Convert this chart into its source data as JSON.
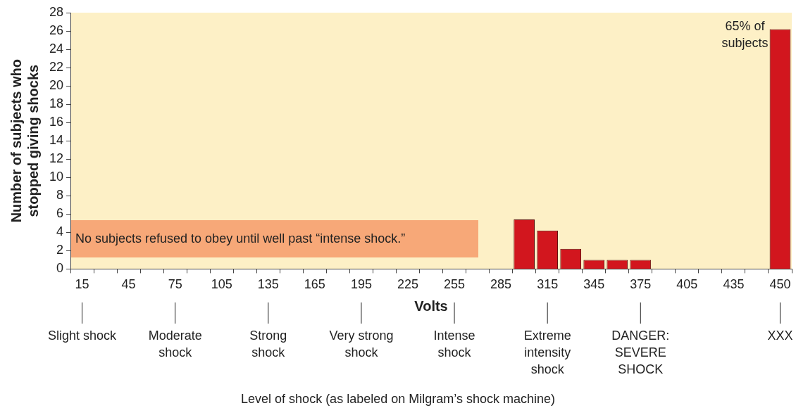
{
  "chart_data": {
    "type": "bar",
    "xlabel": "Volts",
    "ylabel": "Number of subjects who stopped giving shocks",
    "categories": [
      "15",
      null,
      "45",
      null,
      "75",
      null,
      "105",
      null,
      "135",
      null,
      "165",
      null,
      "195",
      null,
      "225",
      null,
      "255",
      null,
      "285",
      null,
      "315",
      null,
      "345",
      null,
      "375",
      null,
      "405",
      null,
      "435",
      null,
      "450"
    ],
    "values": [
      0,
      0,
      0,
      0,
      0,
      0,
      0,
      0,
      0,
      0,
      0,
      0,
      0,
      0,
      0,
      0,
      0,
      0,
      0,
      5.4,
      4.2,
      2.2,
      1,
      1,
      1,
      0,
      0,
      0,
      0,
      0,
      26.2
    ],
    "color": "#d2161e",
    "ylim": [
      0,
      28
    ],
    "yticks": [
      0,
      2,
      4,
      6,
      8,
      10,
      12,
      14,
      16,
      18,
      20,
      22,
      24,
      26,
      28
    ],
    "grid": false,
    "legend": false,
    "annotations": [
      "No subjects refused to obey until well past “intense shock.”",
      {
        "text": "65% of subjects",
        "x": "450",
        "y": 26.2
      },
      {
        "text": "Slight shock",
        "x": "15"
      },
      {
        "text": "Moderate shock",
        "x": "75"
      },
      {
        "text": "Strong shock",
        "x": "135"
      },
      {
        "text": "Very strong shock",
        "x": "195"
      },
      {
        "text": "Intense shock",
        "x": "255"
      },
      {
        "text": "Extreme intensity shock",
        "x": "315"
      },
      {
        "text": "DANGER: SEVERE SHOCK",
        "x": "375"
      },
      {
        "text": "XXX",
        "x": "450"
      },
      "Level of shock (as labeled on Milgram’s shock machine)"
    ]
  }
}
